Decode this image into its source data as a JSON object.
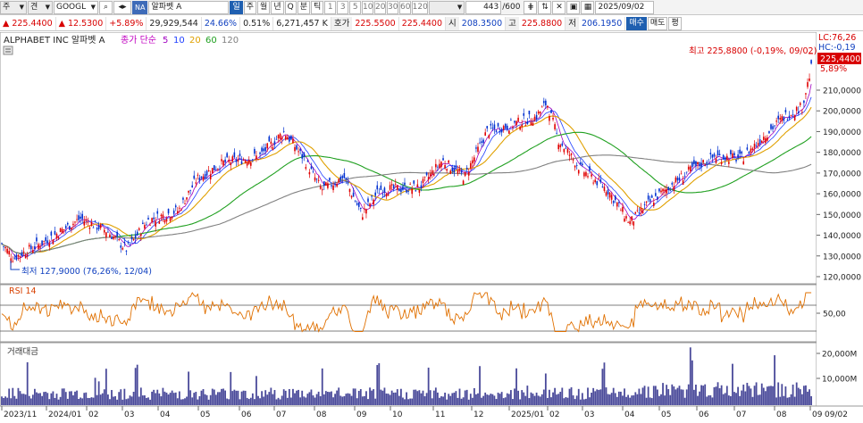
{
  "toolbar": {
    "type_select": "주",
    "mode_select": "견",
    "symbol_input": "GOOGL",
    "na_badge": "NA",
    "name_field": "알파벳 A",
    "period_active": "일",
    "period_week": "주",
    "period_month": "월",
    "period_year": "년",
    "period_q": "Q",
    "period_min": "분",
    "period_tick": "틱",
    "intervals": [
      "1",
      "3",
      "5",
      "10",
      "20",
      "30",
      "60",
      "120"
    ],
    "count_value": "443",
    "count_total": "/600",
    "date_value": "2025/09/02",
    "buy_button": "매수",
    "sell_button": "매도",
    "eval_button": "평"
  },
  "quote": {
    "price": "225.4400",
    "change": "12.5300",
    "change_pct": "+5.89%",
    "volume": "29,929,544",
    "turnover_pct": "24.66%",
    "ratio": "0.51%",
    "amount": "6,271,457 K",
    "bid_label": "호가",
    "bid": "225.5500",
    "ask": "225.4400",
    "open_label": "시",
    "open": "208.3500",
    "high_label": "고",
    "high": "225.8800",
    "low_label": "저",
    "low": "206.1950"
  },
  "chart": {
    "title": "ALPHABET INC  알파벳 A",
    "ma_label": "종가 단순",
    "ma_periods": [
      "5",
      "10",
      "20",
      "60",
      "120"
    ],
    "ma_colors": [
      "#a000c0",
      "#2040ff",
      "#e0a000",
      "#20a020",
      "#808080"
    ],
    "lc_label": "LC:76,26",
    "hc_label": "HC:-0,19",
    "current_price_tag": "225,4400",
    "current_pct_tag": "5,89%",
    "high_annotation": "최고 225,8800 (-0,19%, 09/02)",
    "low_annotation": "최저 127,9000 (76,26%, 12/04)",
    "price_ticks": [
      "210,0000",
      "200,0000",
      "190,0000",
      "180,0000",
      "170,0000",
      "160,0000",
      "150,0000",
      "140,0000",
      "130,0000",
      "120,0000"
    ],
    "rsi_label": "RSI 14",
    "rsi_ticks": [
      "50,00"
    ],
    "volume_label": "거래대금",
    "volume_ticks": [
      "20,000M",
      "10,000M"
    ],
    "x_ticks": [
      "2023/11",
      "2024/01",
      "02",
      "03",
      "04",
      "05",
      "06",
      "07",
      "08",
      "09",
      "10",
      "11",
      "12",
      "2025/01",
      "02",
      "03",
      "04",
      "05",
      "06",
      "07",
      "08",
      "09",
      "09/02"
    ]
  }
}
